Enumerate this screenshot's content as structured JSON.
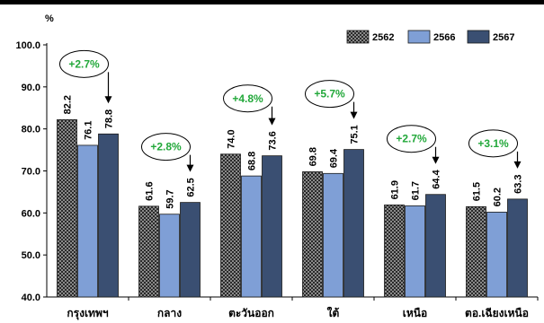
{
  "chart_data": {
    "type": "bar",
    "unit_label": "%",
    "categories": [
      "กรุงเทพฯ",
      "กลาง",
      "ตะวันออก",
      "ใต้",
      "เหนือ",
      "ตอ.เฉียงเหนือ"
    ],
    "series": [
      {
        "name": "2562",
        "values": [
          82.2,
          61.6,
          74.0,
          69.8,
          61.9,
          61.5
        ],
        "color": "#2a2a2a",
        "pattern": "checker"
      },
      {
        "name": "2566",
        "values": [
          76.1,
          59.7,
          68.8,
          69.4,
          61.7,
          60.2
        ],
        "color": "#7f9fd6"
      },
      {
        "name": "2567",
        "values": [
          78.8,
          62.5,
          73.6,
          75.1,
          64.4,
          63.3
        ],
        "color": "#3a4f72"
      }
    ],
    "value_labels": [
      [
        "82.2",
        "61.6",
        "74.0",
        "69.8",
        "61.9",
        "61.5"
      ],
      [
        "76.1",
        "59.7",
        "68.8",
        "69.4",
        "61.7",
        "60.2"
      ],
      [
        "78.8",
        "62.5",
        "73.6",
        "75.1",
        "64.4",
        "63.3"
      ]
    ],
    "annotations": [
      "+2.7%",
      "+2.8%",
      "+4.8%",
      "+5.7%",
      "+2.7%",
      "+3.1%"
    ],
    "annotation_color": "#22a83a",
    "ylim": [
      40,
      100
    ],
    "y_ticks": [
      40,
      50,
      60,
      70,
      80,
      90,
      100
    ],
    "y_tick_labels": [
      "40.0",
      "50.0",
      "60.0",
      "70.0",
      "80.0",
      "90.0",
      "100.0"
    ],
    "legend_position": "top-right",
    "grid": false,
    "title": "",
    "xlabel": "",
    "ylabel": ""
  }
}
